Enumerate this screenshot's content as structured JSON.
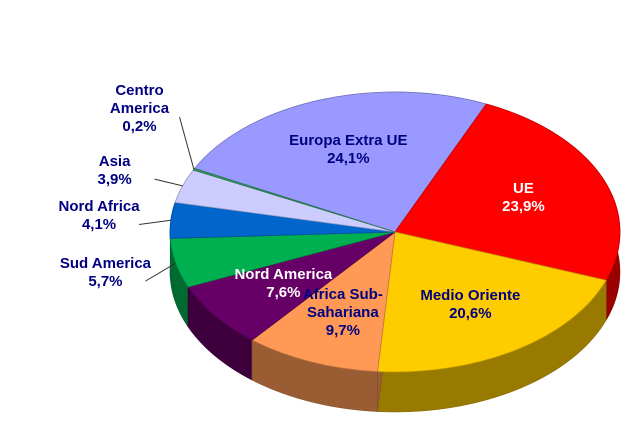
{
  "chart_data": {
    "type": "pie",
    "categories": [
      "Europa Extra UE",
      "UE",
      "Medio Oriente",
      "Africa Sub-Sahariana",
      "Nord America",
      "Sud America",
      "Nord Africa",
      "Asia",
      "Centro America"
    ],
    "values": [
      24.1,
      23.9,
      20.6,
      9.7,
      7.6,
      5.7,
      4.1,
      3.9,
      0.2
    ],
    "value_labels": [
      "24,1%",
      "23,9%",
      "20,6%",
      "9,7%",
      "7,6%",
      "5,7%",
      "4,1%",
      "3,9%",
      "0,2%"
    ],
    "colors": [
      "#9999ff",
      "#ff0000",
      "#ffcc00",
      "#ff9955",
      "#660066",
      "#00b050",
      "#0066cc",
      "#ccccff",
      "#339966"
    ],
    "label_colors": [
      "#000080",
      "#ffffff",
      "#000080",
      "#000080",
      "#ffffff",
      "#000080",
      "#000080",
      "#000080",
      "#000080"
    ]
  }
}
